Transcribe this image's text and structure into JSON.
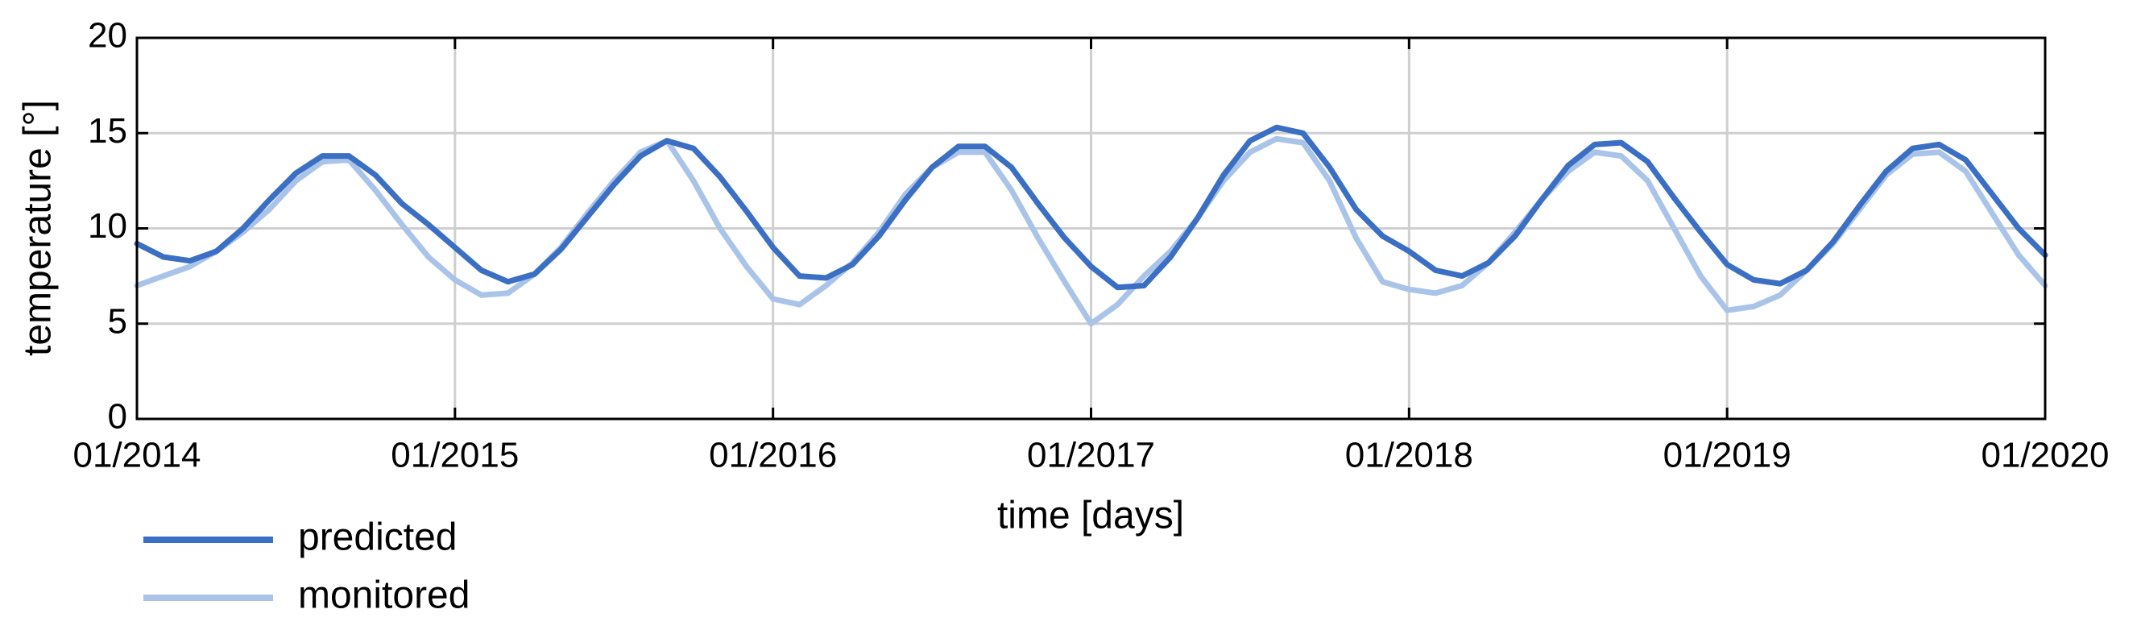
{
  "chart_data": {
    "type": "line",
    "x_label": "time [days]",
    "y_label": "temperature [°]",
    "x": [
      "01/2014",
      "02/2014",
      "03/2014",
      "04/2014",
      "05/2014",
      "06/2014",
      "07/2014",
      "08/2014",
      "09/2014",
      "10/2014",
      "11/2014",
      "12/2014",
      "01/2015",
      "02/2015",
      "03/2015",
      "04/2015",
      "05/2015",
      "06/2015",
      "07/2015",
      "08/2015",
      "09/2015",
      "10/2015",
      "11/2015",
      "12/2015",
      "01/2016",
      "02/2016",
      "03/2016",
      "04/2016",
      "05/2016",
      "06/2016",
      "07/2016",
      "08/2016",
      "09/2016",
      "10/2016",
      "11/2016",
      "12/2016",
      "01/2017",
      "02/2017",
      "03/2017",
      "04/2017",
      "05/2017",
      "06/2017",
      "07/2017",
      "08/2017",
      "09/2017",
      "10/2017",
      "11/2017",
      "12/2017",
      "01/2018",
      "02/2018",
      "03/2018",
      "04/2018",
      "05/2018",
      "06/2018",
      "07/2018",
      "08/2018",
      "09/2018",
      "10/2018",
      "11/2018",
      "12/2018",
      "01/2019",
      "02/2019",
      "03/2019",
      "04/2019",
      "05/2019",
      "06/2019",
      "07/2019",
      "08/2019",
      "09/2019",
      "10/2019",
      "11/2019",
      "12/2019",
      "01/2020"
    ],
    "series": [
      {
        "name": "predicted",
        "color": "#3a6fc4",
        "values": [
          9.2,
          8.5,
          8.3,
          8.8,
          10.0,
          11.5,
          12.9,
          13.8,
          13.8,
          12.8,
          11.3,
          10.2,
          9.0,
          7.8,
          7.2,
          7.6,
          8.9,
          10.6,
          12.3,
          13.8,
          14.6,
          14.2,
          12.7,
          10.9,
          9.0,
          7.5,
          7.4,
          8.1,
          9.6,
          11.5,
          13.2,
          14.3,
          14.3,
          13.2,
          11.3,
          9.5,
          8.0,
          6.9,
          7.0,
          8.5,
          10.5,
          12.8,
          14.6,
          15.3,
          15.0,
          13.2,
          11.0,
          9.6,
          8.8,
          7.8,
          7.5,
          8.2,
          9.6,
          11.5,
          13.3,
          14.4,
          14.5,
          13.5,
          11.6,
          9.8,
          8.1,
          7.3,
          7.1,
          7.8,
          9.3,
          11.2,
          13.0,
          14.2,
          14.4,
          13.6,
          11.8,
          10.0,
          8.6
        ]
      },
      {
        "name": "monitored",
        "color": "#a9c4e8",
        "values": [
          7.0,
          7.5,
          8.0,
          8.8,
          9.8,
          11.0,
          12.5,
          13.5,
          13.6,
          12.0,
          10.2,
          8.5,
          7.3,
          6.5,
          6.6,
          7.6,
          9.0,
          10.8,
          12.5,
          14.0,
          14.6,
          12.5,
          10.0,
          8.0,
          6.3,
          6.0,
          7.0,
          8.2,
          9.8,
          11.8,
          13.2,
          14.0,
          14.0,
          12.0,
          9.5,
          7.2,
          5.0,
          6.0,
          7.5,
          8.8,
          10.5,
          12.5,
          14.0,
          14.7,
          14.5,
          12.5,
          9.5,
          7.2,
          6.8,
          6.6,
          7.0,
          8.2,
          9.8,
          11.5,
          13.0,
          14.0,
          13.8,
          12.5,
          10.0,
          7.5,
          5.7,
          5.9,
          6.5,
          7.8,
          9.2,
          11.0,
          12.8,
          13.9,
          14.0,
          13.0,
          10.8,
          8.6,
          7.0
        ]
      }
    ],
    "xlim": [
      "01/2014",
      "01/2020"
    ],
    "xticks": [
      "01/2014",
      "01/2015",
      "01/2016",
      "01/2017",
      "01/2018",
      "01/2019",
      "01/2020"
    ],
    "ylim": [
      0,
      20
    ],
    "yticks": [
      0,
      5,
      10,
      15,
      20
    ],
    "grid": true,
    "legend": "bottom-left"
  }
}
